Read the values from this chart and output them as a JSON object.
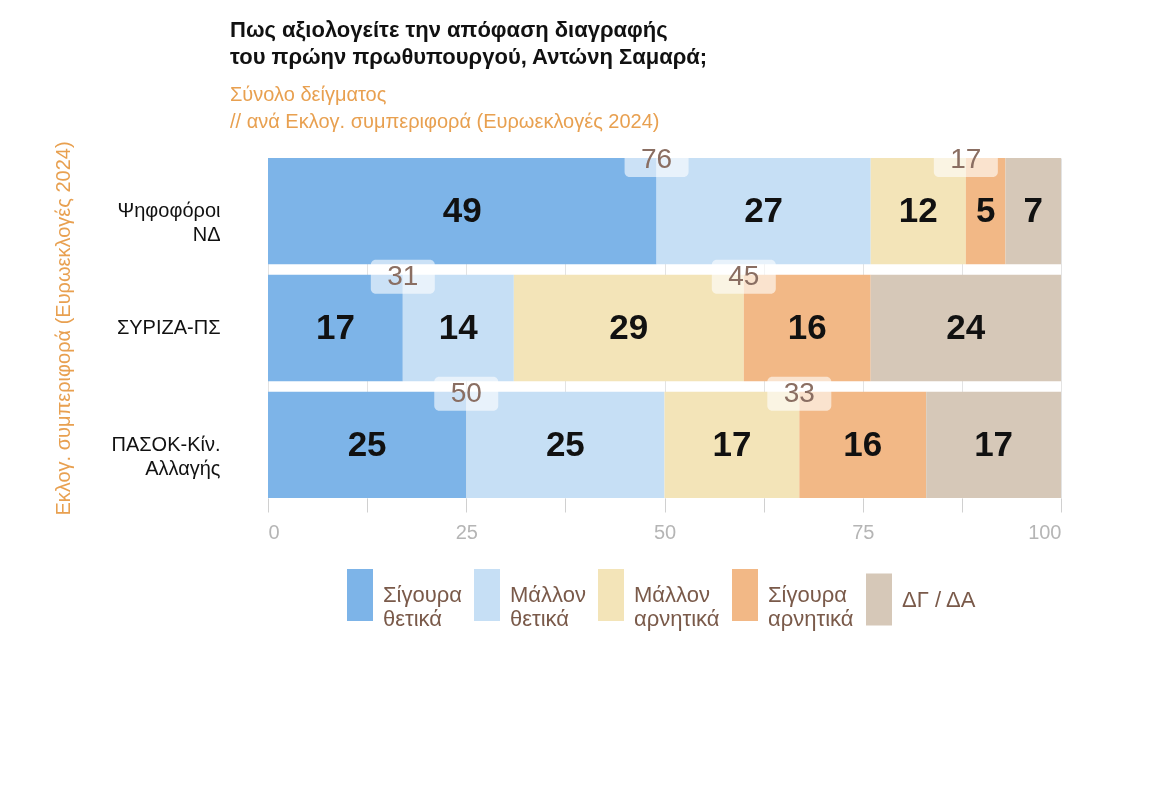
{
  "chart_data": {
    "type": "bar",
    "orientation": "horizontal",
    "stacked": true,
    "title": "Πως αξιολογείτε  την απόφαση διαγραφής\nτου πρώην πρωθυπουργού, Αντώνη Σαμαρά;",
    "subtitle": "Σύνολο δείγματος\n // ανά Εκλογ. συμπεριφορά (Ευρωεκλογές 2024)",
    "ylabel": "Εκλογ. συμπεριφορά (Ευρωεκλογές 2024)",
    "categories": [
      "Ψηφοφόροι\nΝΔ",
      "ΣΥΡΙΖΑ-ΠΣ",
      "ΠΑΣΟΚ-Κίν.\nΑλλαγής"
    ],
    "series": [
      {
        "name": "Σίγουρα\nθετικά",
        "color": "#7db4e8",
        "values": [
          49,
          17,
          25
        ]
      },
      {
        "name": "Μάλλον\nθετικά",
        "color": "#c6dff5",
        "values": [
          27,
          14,
          25
        ]
      },
      {
        "name": "Μάλλον\nαρνητικά",
        "color": "#f3e4b8",
        "values": [
          12,
          29,
          17
        ]
      },
      {
        "name": "Σίγουρα\nαρνητικά",
        "color": "#f2b886",
        "values": [
          5,
          16,
          16
        ]
      },
      {
        "name": "ΔΓ / ΔΑ",
        "color": "#d6c8b8",
        "values": [
          7,
          24,
          17
        ]
      }
    ],
    "xlim": [
      0,
      100
    ],
    "xticks": [
      0,
      {
        "value": 12.5,
        "label": null
      },
      25,
      {
        "value": 37.5,
        "label": null
      },
      50,
      {
        "value": 62.5,
        "label": null
      },
      75,
      {
        "value": 87.5,
        "label": null
      },
      100
    ],
    "grid": "x",
    "legend": "bottom",
    "data_labels": true,
    "annotations": [
      {
        "text": "76",
        "x": 49,
        "y": "Ψηφοφόροι\nΝΔ"
      },
      {
        "text": "17",
        "x": 88,
        "y": "Ψηφοφόροι\nΝΔ"
      },
      {
        "text": "31",
        "x": 17,
        "y": "ΣΥΡΙΖΑ-ΠΣ"
      },
      {
        "text": "45",
        "x": 60,
        "y": "ΣΥΡΙΖΑ-ΠΣ"
      },
      {
        "text": "50",
        "x": 25,
        "y": "ΠΑΣΟΚ-Κίν.\nΑλλαγής"
      },
      {
        "text": "33",
        "x": 67,
        "y": "ΠΑΣΟΚ-Κίν.\nΑλλαγής"
      }
    ]
  }
}
